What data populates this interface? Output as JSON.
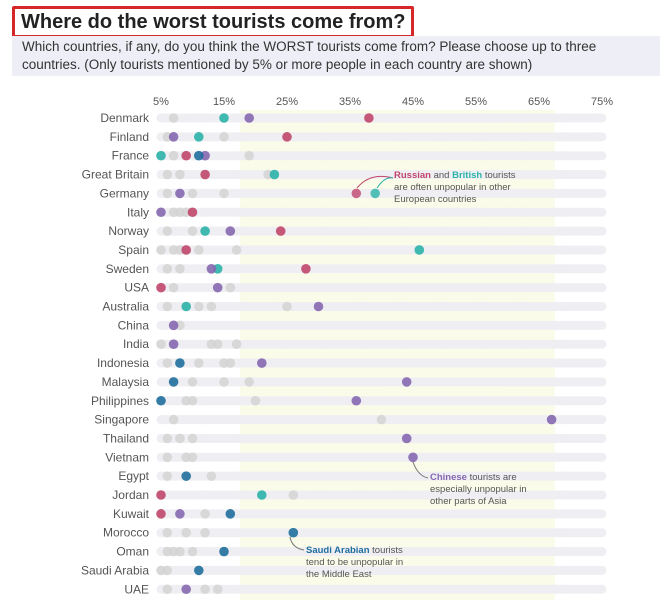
{
  "title": "Where do the worst tourists come from?",
  "subtitle": "Which countries, if any, do you think the WORST tourists come from? Please choose up to three countries. (Only tourists mentioned by 5% or more people in each country are shown)",
  "colors": {
    "russia": "#c0476b",
    "britain": "#2bb3a8",
    "china": "#8567b0",
    "saudi": "#1f6e9c",
    "other": "#d4d4d4",
    "row_band": "#efeff3",
    "highlight": "#fbfbe9",
    "label": "#555555"
  },
  "chart_data": {
    "type": "dot-plot",
    "title": "Where do the worst tourists come from?",
    "x_ticks": [
      "5%",
      "15%",
      "25%",
      "35%",
      "45%",
      "55%",
      "65%",
      "75%"
    ],
    "x_tick_values": [
      5,
      15,
      25,
      35,
      45,
      55,
      65,
      75
    ],
    "xlim": [
      5,
      75
    ],
    "highlight_range": [
      17.5,
      67.5
    ],
    "series_keys": [
      "russia",
      "britain",
      "china",
      "saudi"
    ],
    "rows": [
      {
        "country": "Denmark",
        "russia": 38,
        "britain": 15,
        "china": 19,
        "saudi": null,
        "others": [
          7
        ]
      },
      {
        "country": "Finland",
        "russia": 25,
        "britain": 11,
        "china": 7,
        "saudi": null,
        "others": [
          6,
          15
        ]
      },
      {
        "country": "France",
        "russia": 9,
        "britain": 5,
        "china": 12,
        "saudi": 11,
        "others": [
          7,
          19
        ]
      },
      {
        "country": "Great Britain",
        "russia": 12,
        "britain": 23,
        "china": null,
        "saudi": null,
        "others": [
          6,
          8,
          22
        ]
      },
      {
        "country": "Germany",
        "russia": null,
        "britain": null,
        "china": 8,
        "saudi": null,
        "others": [
          6,
          10,
          15
        ]
      },
      {
        "country": "Italy",
        "russia": 10,
        "britain": null,
        "china": 5,
        "saudi": null,
        "others": [
          7,
          8,
          9
        ]
      },
      {
        "country": "Norway",
        "russia": 24,
        "britain": 12,
        "china": 16,
        "saudi": null,
        "others": [
          6,
          10
        ]
      },
      {
        "country": "Spain",
        "russia": 9,
        "britain": 46,
        "china": null,
        "saudi": null,
        "others": [
          5,
          7,
          8,
          11,
          17
        ]
      },
      {
        "country": "Sweden",
        "russia": 28,
        "britain": 14,
        "china": 13,
        "saudi": null,
        "others": [
          6,
          8
        ]
      },
      {
        "country": "USA",
        "russia": 5,
        "britain": null,
        "china": 14,
        "saudi": null,
        "others": [
          7,
          16
        ]
      },
      {
        "country": "Australia",
        "russia": null,
        "britain": 9,
        "china": 30,
        "saudi": null,
        "others": [
          6,
          11,
          13,
          25
        ]
      },
      {
        "country": "China",
        "russia": null,
        "britain": null,
        "china": 7,
        "saudi": null,
        "others": [
          8
        ]
      },
      {
        "country": "India",
        "russia": null,
        "britain": null,
        "china": 7,
        "saudi": null,
        "others": [
          5,
          13,
          14,
          17
        ]
      },
      {
        "country": "Indonesia",
        "russia": null,
        "britain": null,
        "china": 21,
        "saudi": 8,
        "others": [
          6,
          11,
          15,
          16
        ]
      },
      {
        "country": "Malaysia",
        "russia": null,
        "britain": null,
        "china": 44,
        "saudi": 7,
        "others": [
          10,
          15,
          19
        ]
      },
      {
        "country": "Philippines",
        "russia": null,
        "britain": null,
        "china": 36,
        "saudi": 5,
        "others": [
          9,
          10,
          20
        ]
      },
      {
        "country": "Singapore",
        "russia": null,
        "britain": null,
        "china": 67,
        "saudi": null,
        "others": [
          7,
          40
        ]
      },
      {
        "country": "Thailand",
        "russia": null,
        "britain": null,
        "china": 44,
        "saudi": null,
        "others": [
          6,
          8,
          10
        ]
      },
      {
        "country": "Vietnam",
        "russia": null,
        "britain": null,
        "china": 45,
        "saudi": null,
        "others": [
          6,
          9,
          10
        ]
      },
      {
        "country": "Egypt",
        "russia": null,
        "britain": null,
        "china": null,
        "saudi": 9,
        "others": [
          6,
          13
        ]
      },
      {
        "country": "Jordan",
        "russia": 5,
        "britain": 21,
        "china": null,
        "saudi": null,
        "others": [
          26
        ]
      },
      {
        "country": "Kuwait",
        "russia": 5,
        "britain": null,
        "china": 8,
        "saudi": 16,
        "others": [
          12
        ]
      },
      {
        "country": "Morocco",
        "russia": null,
        "britain": null,
        "china": null,
        "saudi": 26,
        "others": [
          6,
          9,
          12
        ]
      },
      {
        "country": "Oman",
        "russia": null,
        "britain": null,
        "china": null,
        "saudi": 15,
        "others": [
          6,
          7,
          8,
          10
        ]
      },
      {
        "country": "Saudi Arabia",
        "russia": null,
        "britain": null,
        "china": null,
        "saudi": 11,
        "others": [
          5,
          6
        ]
      },
      {
        "country": "UAE",
        "russia": null,
        "britain": null,
        "china": 9,
        "saudi": null,
        "others": [
          6,
          12,
          14
        ]
      }
    ],
    "annotations": [
      {
        "key": "rb",
        "highlights": [
          {
            "text": "Russian",
            "color": "russia"
          },
          {
            "text": "British",
            "color": "britain"
          }
        ],
        "lines": [
          "Russian and British tourists",
          "are often unpopular in other",
          "European countries"
        ],
        "legend_dots": [
          {
            "value": 36,
            "color": "russia"
          },
          {
            "value": 39,
            "color": "britain"
          }
        ],
        "legend_row": "Germany"
      },
      {
        "key": "cn",
        "highlights": [
          {
            "text": "Chinese",
            "color": "china"
          }
        ],
        "lines": [
          "Chinese tourists are",
          "especially unpopular in",
          "other parts of Asia"
        ]
      },
      {
        "key": "sa",
        "highlights": [
          {
            "text": "Saudi Arabian",
            "color": "saudi"
          }
        ],
        "lines": [
          "Saudi Arabian tourists",
          "tend to be unpopular in",
          "the Middle East"
        ]
      }
    ]
  }
}
